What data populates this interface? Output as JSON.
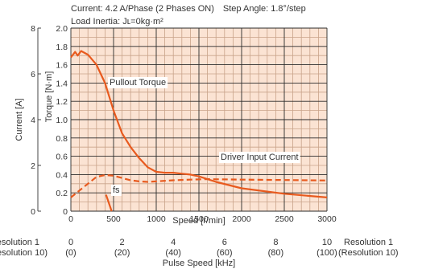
{
  "header": {
    "line1": "Current: 4.2 A/Phase (2 Phases ON) Step Angle: 1.8°/step",
    "line2": "Load Inertia: Jʟ=0kg·m²"
  },
  "chart_data": {
    "type": "line",
    "xlabel": "Speed [r/min]",
    "ylabel": "Torque [N·m]",
    "y2label": "Current [A]",
    "xlim": [
      0,
      3000
    ],
    "ylim": [
      0,
      2.0
    ],
    "y2lim": [
      0,
      8
    ],
    "grid": true,
    "x_ticks": [
      "0",
      "500",
      "1000",
      "1500",
      "2000",
      "2500",
      "3000"
    ],
    "y_ticks": [
      "0",
      "0.2",
      "0.4",
      "0.6",
      "0.8",
      "1.0",
      "1.2",
      "1.4",
      "1.6",
      "1.8",
      "2.0"
    ],
    "y2_ticks": [
      "0",
      "2",
      "4",
      "6",
      "8"
    ],
    "colors": {
      "line": "#e85a1e",
      "grid_major": "#2a2a2a",
      "grid_minor": "#c9a38a",
      "plot_bg": "#fbe3d3"
    },
    "series": [
      {
        "name": "Pullout Torque",
        "axis": "torque",
        "style": "solid",
        "points": [
          [
            0,
            1.68
          ],
          [
            50,
            1.74
          ],
          [
            80,
            1.7
          ],
          [
            120,
            1.75
          ],
          [
            200,
            1.71
          ],
          [
            300,
            1.6
          ],
          [
            400,
            1.4
          ],
          [
            500,
            1.1
          ],
          [
            600,
            0.85
          ],
          [
            700,
            0.7
          ],
          [
            800,
            0.58
          ],
          [
            900,
            0.48
          ],
          [
            1000,
            0.43
          ],
          [
            1100,
            0.42
          ],
          [
            1200,
            0.42
          ],
          [
            1300,
            0.41
          ],
          [
            1400,
            0.4
          ],
          [
            1500,
            0.38
          ],
          [
            1700,
            0.32
          ],
          [
            2000,
            0.25
          ],
          [
            2500,
            0.19
          ],
          [
            3000,
            0.15
          ]
        ]
      },
      {
        "name": "Driver Input Current",
        "axis": "current",
        "style": "dashed",
        "points": [
          [
            0,
            0.6
          ],
          [
            100,
            0.9
          ],
          [
            200,
            1.2
          ],
          [
            300,
            1.5
          ],
          [
            400,
            1.58
          ],
          [
            500,
            1.55
          ],
          [
            600,
            1.45
          ],
          [
            700,
            1.35
          ],
          [
            800,
            1.3
          ],
          [
            900,
            1.28
          ],
          [
            1000,
            1.3
          ],
          [
            1200,
            1.35
          ],
          [
            1400,
            1.38
          ],
          [
            1600,
            1.4
          ],
          [
            2000,
            1.38
          ],
          [
            2500,
            1.36
          ],
          [
            3000,
            1.34
          ]
        ]
      }
    ],
    "annotations": [
      "Pullout Torque",
      "Driver Input Current",
      "fs"
    ],
    "fs": {
      "x": 440,
      "y_top": 0.18
    },
    "secondary_x": {
      "label": "Pulse Speed [kHz]",
      "res1_label": "Resolution 1",
      "res10_label": "(Resolution 10)",
      "ticks": [
        "0",
        "2",
        "4",
        "6",
        "8",
        "10"
      ],
      "ticks_res10": [
        "(0)",
        "(20)",
        "(40)",
        "(60)",
        "(80)",
        "(100)"
      ]
    }
  }
}
